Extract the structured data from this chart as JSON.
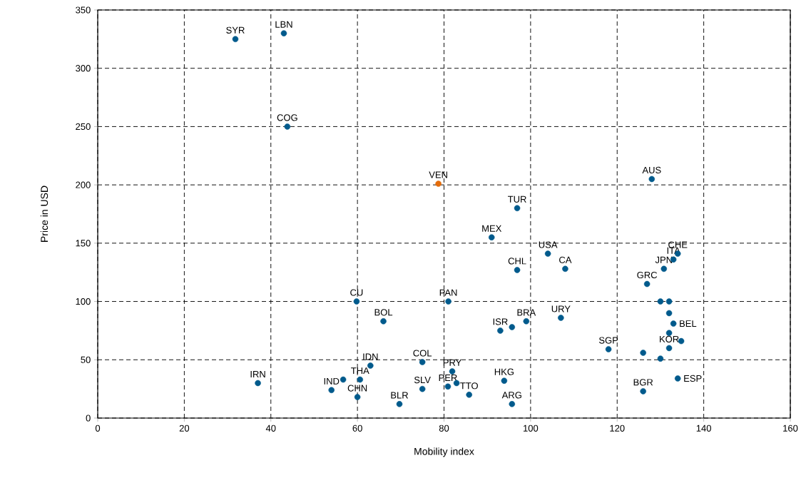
{
  "chart_data": {
    "type": "scatter",
    "xlabel": "Mobility index",
    "ylabel": "Price in USD",
    "xlim": [
      0,
      160
    ],
    "xticks": [
      0,
      20,
      40,
      60,
      80,
      100,
      120,
      140,
      160
    ],
    "ylim": [
      0,
      350
    ],
    "yticks": [
      0,
      50,
      100,
      150,
      200,
      250,
      300,
      350
    ],
    "grid": true,
    "marker": "circle",
    "series": [
      {
        "color": "#005a8c",
        "x": [
          31.8,
          43,
          43.8,
          96.9,
          91,
          104,
          96.9,
          108,
          59.8,
          81,
          66,
          93,
          95.7,
          99,
          107,
          118,
          63,
          54,
          56.7,
          60.6,
          60,
          37,
          75,
          75,
          69.7,
          81.9,
          80.9,
          82.9,
          85.8,
          93.9,
          95.7,
          128,
          134,
          133,
          130.8,
          126.9,
          130,
          132,
          132,
          133,
          132,
          134.8,
          132,
          126,
          130,
          134,
          126
        ],
        "values": [
          325,
          330,
          250,
          180,
          155,
          141,
          127,
          128,
          100,
          100,
          83,
          75,
          78,
          83,
          86,
          59,
          45,
          24,
          33,
          33,
          18,
          30,
          48,
          25,
          12,
          40,
          27,
          30,
          20,
          32,
          12,
          205,
          141,
          136,
          128,
          115,
          100,
          100,
          90,
          81,
          73,
          66,
          60,
          56,
          51,
          34,
          23
        ]
      },
      {
        "color": "#e46c0a",
        "x": [
          78.7
        ],
        "values": [
          201
        ]
      }
    ],
    "annotations": [
      {
        "text": "SYR",
        "x": 31.8,
        "y": 325
      },
      {
        "text": "LBN",
        "x": 43,
        "y": 330
      },
      {
        "text": "COG",
        "x": 43.8,
        "y": 250
      },
      {
        "text": "VEN",
        "x": 78.7,
        "y": 201
      },
      {
        "text": "TUR",
        "x": 96.9,
        "y": 180
      },
      {
        "text": "MEX",
        "x": 91,
        "y": 155
      },
      {
        "text": "USA",
        "x": 104,
        "y": 141
      },
      {
        "text": "CHL",
        "x": 96.9,
        "y": 127
      },
      {
        "text": "CA",
        "x": 108,
        "y": 128
      },
      {
        "text": "CU",
        "x": 59.8,
        "y": 100
      },
      {
        "text": "PAN",
        "x": 81,
        "y": 100
      },
      {
        "text": "BOL",
        "x": 66,
        "y": 83
      },
      {
        "text": "ISR",
        "x": 93,
        "y": 75
      },
      {
        "text": "BRA",
        "x": 99,
        "y": 83
      },
      {
        "text": "URY",
        "x": 107,
        "y": 86
      },
      {
        "text": "SGP",
        "x": 118,
        "y": 59
      },
      {
        "text": "IDN",
        "x": 63,
        "y": 45
      },
      {
        "text": "THA",
        "x": 60.6,
        "y": 33
      },
      {
        "text": "IND",
        "x": 54,
        "y": 24
      },
      {
        "text": "CHN",
        "x": 60,
        "y": 18
      },
      {
        "text": "IRN",
        "x": 37,
        "y": 30
      },
      {
        "text": "COL",
        "x": 75,
        "y": 48
      },
      {
        "text": "SLV",
        "x": 75,
        "y": 25
      },
      {
        "text": "BLR",
        "x": 69.7,
        "y": 12
      },
      {
        "text": "PRY",
        "x": 81.9,
        "y": 40
      },
      {
        "text": "PER",
        "x": 80.9,
        "y": 27
      },
      {
        "text": "TTO",
        "x": 85.8,
        "y": 20
      },
      {
        "text": "HKG",
        "x": 93.9,
        "y": 32
      },
      {
        "text": "ARG",
        "x": 95.7,
        "y": 12
      },
      {
        "text": "AUS",
        "x": 128,
        "y": 205
      },
      {
        "text": "CHE",
        "x": 134,
        "y": 141
      },
      {
        "text": "ITA",
        "x": 133,
        "y": 136
      },
      {
        "text": "JPN",
        "x": 130.8,
        "y": 128
      },
      {
        "text": "GRC",
        "x": 126.9,
        "y": 115
      },
      {
        "text": "BEL",
        "x": 133,
        "y": 81
      },
      {
        "text": "KOR",
        "x": 132,
        "y": 60
      },
      {
        "text": "ESP",
        "x": 134,
        "y": 34
      },
      {
        "text": "BGR",
        "x": 126,
        "y": 23
      }
    ]
  }
}
